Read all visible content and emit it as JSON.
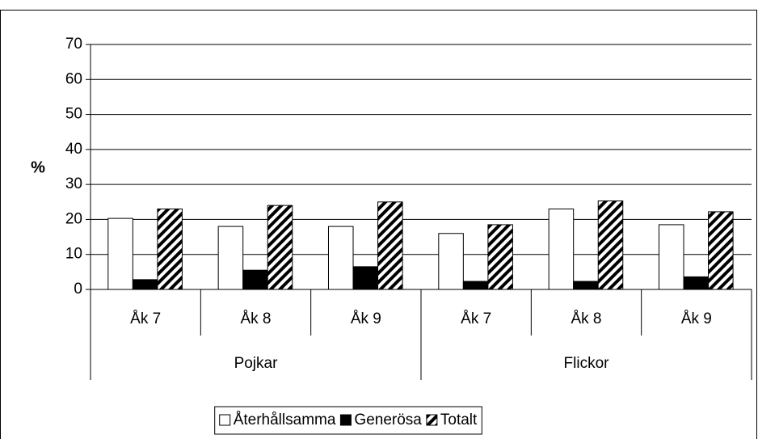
{
  "chart_data": {
    "type": "bar",
    "y_label": "%",
    "categories": [
      "Åk 7",
      "Åk 8",
      "Åk 9",
      "Åk 7",
      "Åk 8",
      "Åk 9"
    ],
    "groups": [
      "Pojkar",
      "Flickor"
    ],
    "series": [
      {
        "name": "Återhållsamma",
        "color": "#ffffff",
        "values": [
          20.3,
          18,
          18,
          16,
          23,
          18.5
        ]
      },
      {
        "name": "Generösa",
        "color": "#000000",
        "values": [
          2.8,
          5.5,
          6.5,
          2.3,
          2.3,
          3.6
        ]
      },
      {
        "name": "Totalt",
        "color": "#000000",
        "pattern": "hatch",
        "values": [
          23,
          24,
          25,
          18.5,
          25.3,
          22.2
        ]
      }
    ],
    "ylim": [
      0,
      70
    ],
    "yticks": [
      0,
      10,
      20,
      30,
      40,
      50,
      60,
      70
    ],
    "grid": true,
    "legend": "bottom"
  }
}
